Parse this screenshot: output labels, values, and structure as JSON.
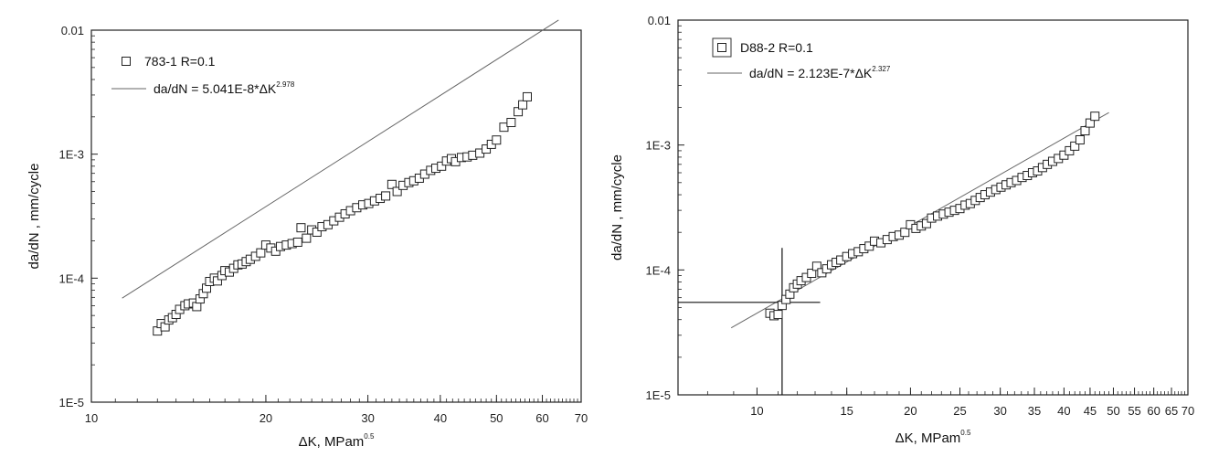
{
  "chart_data": [
    {
      "type": "scatter",
      "title": "",
      "xlabel": "ΔK, MPam",
      "xlabel_exponent": "0.5",
      "ylabel": "da/dN , mm/cycle",
      "xscale": "log",
      "yscale": "log",
      "xlim": [
        10,
        70
      ],
      "ylim": [
        1e-05,
        0.01
      ],
      "x_ticks": [
        10,
        20,
        30,
        40,
        50,
        60,
        70
      ],
      "x_tick_labels": [
        "10",
        "20",
        "30",
        "40",
        "50",
        "60",
        "70"
      ],
      "y_ticks": [
        1e-05,
        0.0001,
        0.001,
        0.01
      ],
      "y_tick_labels": [
        "1E-5",
        "1E-4",
        "1E-3",
        "0.01"
      ],
      "grid": false,
      "legend_position": "top-left",
      "legend": {
        "marker_label": "783-1 R=0.1",
        "fit_label": "da/dN = 5.041E-8*ΔK",
        "fit_exponent": "2.978"
      },
      "fit": {
        "coefficient": 5.041e-08,
        "exponent": 2.978,
        "x_range": [
          11.3,
          64
        ]
      },
      "series": [
        {
          "marker": "open-square",
          "x": [
            13.0,
            13.2,
            13.4,
            13.6,
            13.8,
            14.0,
            14.2,
            14.5,
            14.7,
            15.0,
            15.2,
            15.4,
            15.6,
            15.8,
            16.0,
            16.3,
            16.5,
            16.8,
            17.0,
            17.3,
            17.6,
            17.9,
            18.2,
            18.5,
            18.8,
            19.2,
            19.6,
            20.0,
            20.4,
            20.8,
            21.2,
            21.7,
            22.2,
            22.7,
            23.0,
            23.5,
            24.0,
            24.5,
            25.0,
            25.6,
            26.2,
            26.8,
            27.4,
            28.0,
            28.7,
            29.4,
            30.1,
            30.8,
            31.5,
            32.2,
            33.0,
            33.7,
            34.5,
            35.3,
            36.0,
            36.8,
            37.6,
            38.5,
            39.3,
            40.2,
            41.0,
            41.8,
            42.5,
            43.5,
            44.5,
            45.5,
            46.8,
            48.0,
            49.0,
            50.0,
            51.5,
            53.0,
            54.5,
            55.5,
            56.5
          ],
          "y": [
            3.75e-05,
            4.3e-05,
            4.05e-05,
            4.6e-05,
            4.8e-05,
            5.1e-05,
            5.6e-05,
            6e-05,
            6.2e-05,
            6.3e-05,
            5.9e-05,
            6.8e-05,
            7.5e-05,
            8.3e-05,
            9.4e-05,
            0.0001,
            9.5e-05,
            0.000105,
            0.000115,
            0.000112,
            0.00012,
            0.000128,
            0.00013,
            0.000136,
            0.000142,
            0.00015,
            0.00016,
            0.000185,
            0.000175,
            0.000165,
            0.00018,
            0.000185,
            0.00019,
            0.000195,
            0.000255,
            0.00021,
            0.000245,
            0.000235,
            0.00026,
            0.00027,
            0.00029,
            0.00031,
            0.00033,
            0.00035,
            0.00037,
            0.00039,
            0.0004,
            0.00042,
            0.00044,
            0.00046,
            0.00057,
            0.0005,
            0.00056,
            0.00059,
            0.00061,
            0.00064,
            0.00069,
            0.00074,
            0.00077,
            0.0008,
            0.00088,
            0.00092,
            0.00087,
            0.00094,
            0.00095,
            0.00098,
            0.00102,
            0.0011,
            0.0012,
            0.0013,
            0.00165,
            0.0018,
            0.0022,
            0.0025,
            0.0029
          ]
        }
      ]
    },
    {
      "type": "scatter",
      "title": "",
      "xlabel": "ΔK, MPam",
      "xlabel_exponent": "0.5",
      "ylabel": "da/dN , mm/cycle",
      "xscale": "log",
      "yscale": "log",
      "xlim": [
        7,
        70
      ],
      "ylim": [
        1e-05,
        0.01
      ],
      "x_ticks": [
        10,
        15,
        20,
        25,
        30,
        35,
        40,
        45,
        50,
        55,
        60,
        65,
        70
      ],
      "x_tick_labels": [
        "10",
        "15",
        "20",
        "25",
        "30",
        "35",
        "40",
        "45",
        "50",
        "55",
        "60",
        "65",
        "70"
      ],
      "y_ticks": [
        1e-05,
        0.0001,
        0.001,
        0.01
      ],
      "y_tick_labels": [
        "1E-5",
        "1E-4",
        "1E-3",
        "0.01"
      ],
      "grid": false,
      "legend_position": "top-left",
      "legend": {
        "marker_label": "D88-2 R=0.1",
        "fit_label": "da/dN = 2.123E-7*ΔK",
        "fit_exponent": "2.327"
      },
      "fit": {
        "coefficient": 2.123e-07,
        "exponent": 2.327,
        "x_range": [
          8.9,
          49
        ]
      },
      "crosshair": {
        "x": 11.2,
        "y": 5.5e-05
      },
      "series": [
        {
          "marker": "open-square",
          "x": [
            10.6,
            10.8,
            11.0,
            11.2,
            11.4,
            11.6,
            11.8,
            12.0,
            12.2,
            12.5,
            12.8,
            13.1,
            13.4,
            13.7,
            14.0,
            14.3,
            14.6,
            15.0,
            15.4,
            15.8,
            16.2,
            16.6,
            17.0,
            17.5,
            18.0,
            18.5,
            19.0,
            19.5,
            20.0,
            20.5,
            21.0,
            21.5,
            22.0,
            22.6,
            23.2,
            23.8,
            24.4,
            25.0,
            25.6,
            26.2,
            26.8,
            27.4,
            28.0,
            28.7,
            29.4,
            30.1,
            30.8,
            31.5,
            32.3,
            33.1,
            33.9,
            34.7,
            35.5,
            36.3,
            37.1,
            38.0,
            39.0,
            40.0,
            41.0,
            42.0,
            43.0,
            44.0,
            45.0,
            46.0
          ],
          "y": [
            4.5e-05,
            4.3e-05,
            4.4e-05,
            5.2e-05,
            5.8e-05,
            6.4e-05,
            7.2e-05,
            7.7e-05,
            8.2e-05,
            8.7e-05,
            9.4e-05,
            0.000107,
            9.5e-05,
            0.000102,
            0.00011,
            0.000115,
            0.00012,
            0.000128,
            0.000135,
            0.00014,
            0.000148,
            0.000155,
            0.00017,
            0.000165,
            0.000175,
            0.000185,
            0.00019,
            0.0002,
            0.00023,
            0.000215,
            0.000225,
            0.000235,
            0.00026,
            0.00027,
            0.00028,
            0.00029,
            0.0003,
            0.00031,
            0.00033,
            0.00034,
            0.00036,
            0.00038,
            0.0004,
            0.00042,
            0.00044,
            0.00046,
            0.00048,
            0.0005,
            0.00052,
            0.00055,
            0.00057,
            0.0006,
            0.00062,
            0.00066,
            0.0007,
            0.00074,
            0.00078,
            0.00083,
            0.0009,
            0.00098,
            0.0011,
            0.0013,
            0.0015,
            0.0017
          ]
        }
      ]
    }
  ]
}
